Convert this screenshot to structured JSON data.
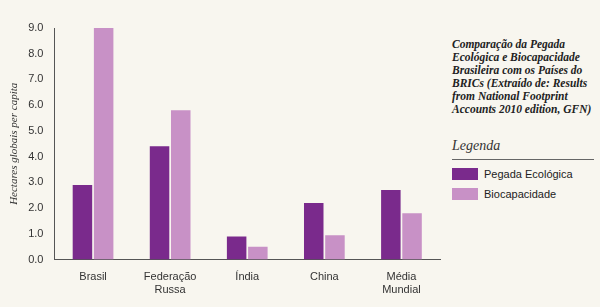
{
  "chart_data": {
    "type": "bar",
    "title": "Comparação da Pegada Ecológica e Biocapacidade Brasileira com os Países do BRICs (Extraído de: Results from National Footprint Accounts 2010 edition, GFN)",
    "y_label": "Hectares globais per capita",
    "legend_title": "Legenda",
    "categories": [
      "Brasil",
      "Federação Russa",
      "Índia",
      "China",
      "Média Mundial"
    ],
    "series": [
      {
        "name": "Pegada Ecológica",
        "color": "#7a2a8c",
        "values": [
          2.9,
          4.4,
          0.9,
          2.2,
          2.7
        ]
      },
      {
        "name": "Biocapacidade",
        "color": "#c891c6",
        "values": [
          9.0,
          5.8,
          0.5,
          0.95,
          1.8
        ]
      }
    ],
    "ylim": [
      0,
      9
    ],
    "yticks": [
      {
        "value": 0,
        "label": "0.0"
      },
      {
        "value": 1,
        "label": "1.0"
      },
      {
        "value": 2,
        "label": "2.0"
      },
      {
        "value": 3,
        "label": "3.0"
      },
      {
        "value": 4,
        "label": "4.0"
      },
      {
        "value": 5,
        "label": "5.0"
      },
      {
        "value": 6,
        "label": "6.0"
      },
      {
        "value": 7,
        "label": "7.0"
      },
      {
        "value": 8,
        "label": "8.0"
      },
      {
        "value": 9,
        "label": "9.0"
      }
    ],
    "grid": false,
    "legend": "right"
  }
}
